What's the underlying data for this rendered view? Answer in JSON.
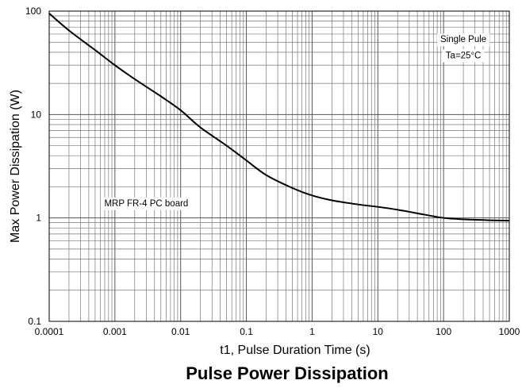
{
  "chart_data": {
    "type": "line",
    "title": "Pulse Power Dissipation",
    "xlabel": "t1, Pulse Duration Time (s)",
    "ylabel": "Max Power Dissipation (W)",
    "x_scale": "log",
    "y_scale": "log",
    "xlim": [
      0.0001,
      1000
    ],
    "ylim": [
      0.1,
      100
    ],
    "x_ticks": [
      "0.0001",
      "0.001",
      "0.01",
      "0.1",
      "1",
      "10",
      "100",
      "1000"
    ],
    "y_ticks": [
      "100",
      "10",
      "1",
      "0.1"
    ],
    "grid": true,
    "annotations": [
      {
        "text": "Single Pule",
        "at": [
          200,
          50
        ]
      },
      {
        "text": "Ta=25°C",
        "at": [
          200,
          35
        ]
      },
      {
        "text": "MRP FR-4 PC board",
        "at": [
          0.003,
          1.3
        ]
      }
    ],
    "series": [
      {
        "color": "#000000",
        "x": [
          0.0001,
          0.0002,
          0.0005,
          0.001,
          0.002,
          0.005,
          0.01,
          0.02,
          0.05,
          0.1,
          0.2,
          0.5,
          1,
          2,
          5,
          10,
          20,
          50,
          100,
          200,
          500,
          1000
        ],
        "y": [
          95,
          65,
          42,
          30,
          22,
          15,
          11,
          7.5,
          5,
          3.6,
          2.6,
          1.95,
          1.65,
          1.48,
          1.35,
          1.28,
          1.2,
          1.08,
          1.0,
          0.97,
          0.95,
          0.94
        ]
      }
    ]
  }
}
